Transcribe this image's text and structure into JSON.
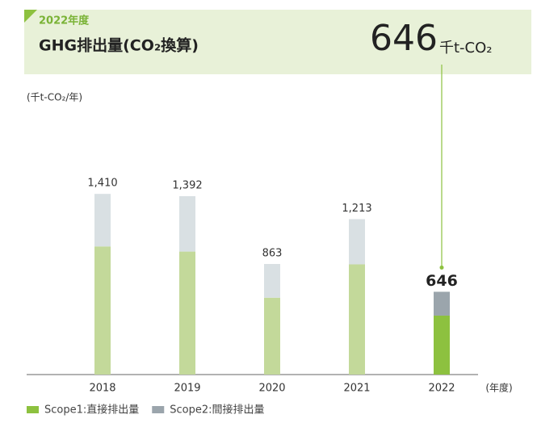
{
  "header": {
    "year": "2022年度",
    "title": "GHG排出量(CO₂換算)",
    "value": 646,
    "unit": "千t-CO₂"
  },
  "chart_data": {
    "type": "stacked_bar",
    "y_label": "(千t-CO₂/年)",
    "x_label": "(年度)",
    "categories": [
      "2018",
      "2019",
      "2020",
      "2021",
      "2022"
    ],
    "series": [
      {
        "name": "Scope1:直接排出量",
        "color": "#8dc13f",
        "faded_color": "#c3d99a",
        "values": [
          1000,
          960,
          600,
          860,
          460
        ]
      },
      {
        "name": "Scope2:間接排出量",
        "color": "#9ba5ac",
        "faded_color": "#d9e0e3",
        "values": [
          410,
          432,
          263,
          353,
          186
        ]
      }
    ],
    "totals": {
      "values": [
        1410,
        1392,
        863,
        1213,
        646
      ],
      "value_labels": [
        "1,410",
        "1,392",
        "863",
        "1,213",
        "646"
      ]
    },
    "highlight": "2022",
    "ylim": [
      0,
      1600
    ],
    "legend": "bottom-left"
  }
}
